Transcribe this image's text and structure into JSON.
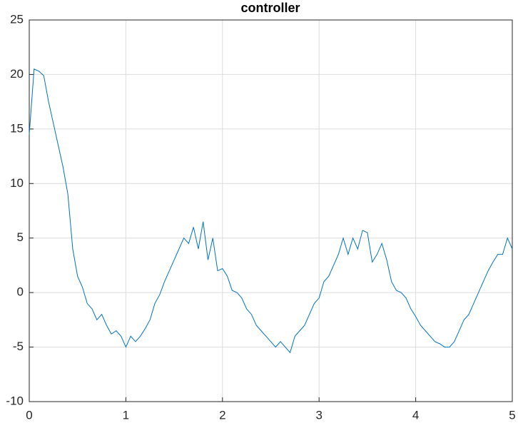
{
  "chart_data": {
    "type": "line",
    "title": "controller",
    "x": [
      0,
      0.05,
      0.1,
      0.15,
      0.2,
      0.25,
      0.3,
      0.35,
      0.4,
      0.45,
      0.5,
      0.55,
      0.6,
      0.65,
      0.7,
      0.75,
      0.8,
      0.85,
      0.9,
      0.95,
      1,
      1.05,
      1.1,
      1.15,
      1.2,
      1.25,
      1.3,
      1.35,
      1.4,
      1.45,
      1.5,
      1.55,
      1.6,
      1.65,
      1.7,
      1.75,
      1.8,
      1.85,
      1.9,
      1.95,
      2,
      2.05,
      2.1,
      2.15,
      2.2,
      2.25,
      2.3,
      2.35,
      2.4,
      2.45,
      2.5,
      2.55,
      2.6,
      2.65,
      2.7,
      2.75,
      2.8,
      2.85,
      2.9,
      2.95,
      3,
      3.05,
      3.1,
      3.15,
      3.2,
      3.25,
      3.3,
      3.35,
      3.4,
      3.45,
      3.5,
      3.55,
      3.6,
      3.65,
      3.7,
      3.75,
      3.8,
      3.85,
      3.9,
      3.95,
      4,
      4.05,
      4.1,
      4.15,
      4.2,
      4.25,
      4.3,
      4.35,
      4.4,
      4.45,
      4.5,
      4.55,
      4.6,
      4.65,
      4.7,
      4.75,
      4.8,
      4.85,
      4.9,
      4.95,
      5
    ],
    "series": [
      {
        "color": "#0072bd",
        "values": [
          14.5,
          20.5,
          20.3,
          19.9,
          17.5,
          15.5,
          13.5,
          11.5,
          9,
          4,
          1.5,
          0.5,
          -1,
          -1.5,
          -2.5,
          -2,
          -3,
          -3.8,
          -3.5,
          -4,
          -5,
          -4,
          -4.5,
          -4,
          -3.3,
          -2.5,
          -1,
          -0.2,
          1,
          2,
          3,
          4,
          5,
          4.5,
          6,
          4,
          6.5,
          3,
          5,
          2,
          2.2,
          1.5,
          0.2,
          0,
          -0.5,
          -1.5,
          -2,
          -3,
          -3.5,
          -4,
          -4.5,
          -5,
          -4.5,
          -5,
          -5.5,
          -4,
          -3.5,
          -3,
          -2,
          -1,
          -0.5,
          1,
          1.5,
          2.5,
          3.5,
          5,
          3.5,
          5,
          4,
          5.7,
          5.5,
          2.8,
          3.5,
          4.5,
          3,
          1,
          0.2,
          0,
          -0.5,
          -1.5,
          -2.2,
          -3,
          -3.5,
          -4,
          -4.5,
          -4.7,
          -5,
          -5,
          -4.5,
          -3.5,
          -2.5,
          -2,
          -1,
          0,
          1,
          2,
          2.8,
          3.5,
          3.5,
          5,
          4
        ]
      }
    ],
    "xlim": [
      0,
      5
    ],
    "xticks": [
      0,
      1,
      2,
      3,
      4,
      5
    ],
    "ylim": [
      -10,
      25
    ],
    "yticks": [
      -10,
      -5,
      0,
      5,
      10,
      15,
      20,
      25
    ],
    "grid": true
  }
}
